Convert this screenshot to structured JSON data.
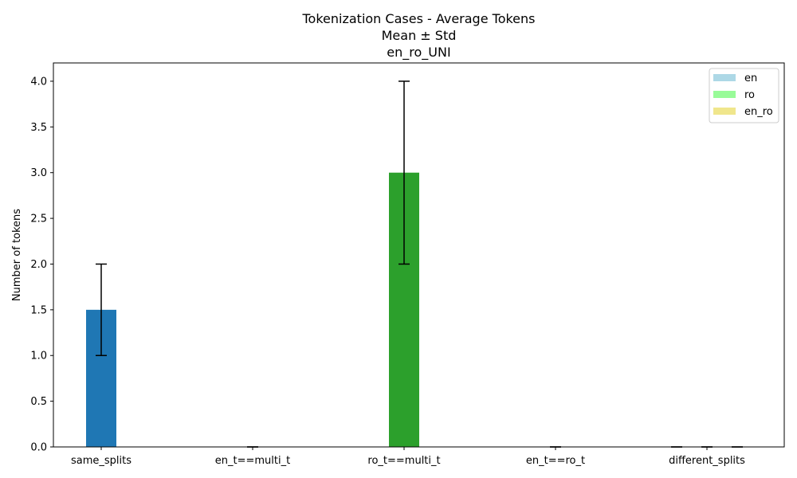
{
  "chart_data": {
    "type": "bar",
    "title_lines": [
      "Tokenization Cases - Average Tokens",
      "Mean ± Std",
      "en_ro_UNI"
    ],
    "xlabel": "",
    "ylabel": "Number of tokens",
    "categories": [
      "same_splits",
      "en_t==multi_t",
      "ro_t==multi_t",
      "en_t==ro_t",
      "different_splits"
    ],
    "ylim": [
      0,
      4.2
    ],
    "yticks": [
      0.0,
      0.5,
      1.0,
      1.5,
      2.0,
      2.5,
      3.0,
      3.5,
      4.0
    ],
    "ytick_labels": [
      "0.0",
      "0.5",
      "1.0",
      "1.5",
      "2.0",
      "2.5",
      "3.0",
      "3.5",
      "4.0"
    ],
    "bars": [
      {
        "category": "same_splits",
        "series": "",
        "value": 1.5,
        "err": 0.5,
        "color": "#1f77b4"
      },
      {
        "category": "en_t==multi_t",
        "series": "",
        "value": 0.0,
        "err": 0.0,
        "color": "#ff7f0e"
      },
      {
        "category": "ro_t==multi_t",
        "series": "",
        "value": 3.0,
        "err": 1.0,
        "color": "#2ca02c"
      },
      {
        "category": "en_t==ro_t",
        "series": "",
        "value": 0.0,
        "err": 0.0,
        "color": "#d62728"
      },
      {
        "category": "different_splits",
        "series": "en",
        "value": 0.0,
        "err": 0.0,
        "color": "#add8e6"
      },
      {
        "category": "different_splits",
        "series": "ro",
        "value": 0.0,
        "err": 0.0,
        "color": "#98fb98"
      },
      {
        "category": "different_splits",
        "series": "en_ro",
        "value": 0.0,
        "err": 0.0,
        "color": "#f0e68c"
      }
    ],
    "legend": {
      "placement": "top-right",
      "entries": [
        {
          "name": "en",
          "color": "#add8e6"
        },
        {
          "name": "ro",
          "color": "#98fb98"
        },
        {
          "name": "en_ro",
          "color": "#f0e68c"
        }
      ]
    },
    "grid": false
  }
}
